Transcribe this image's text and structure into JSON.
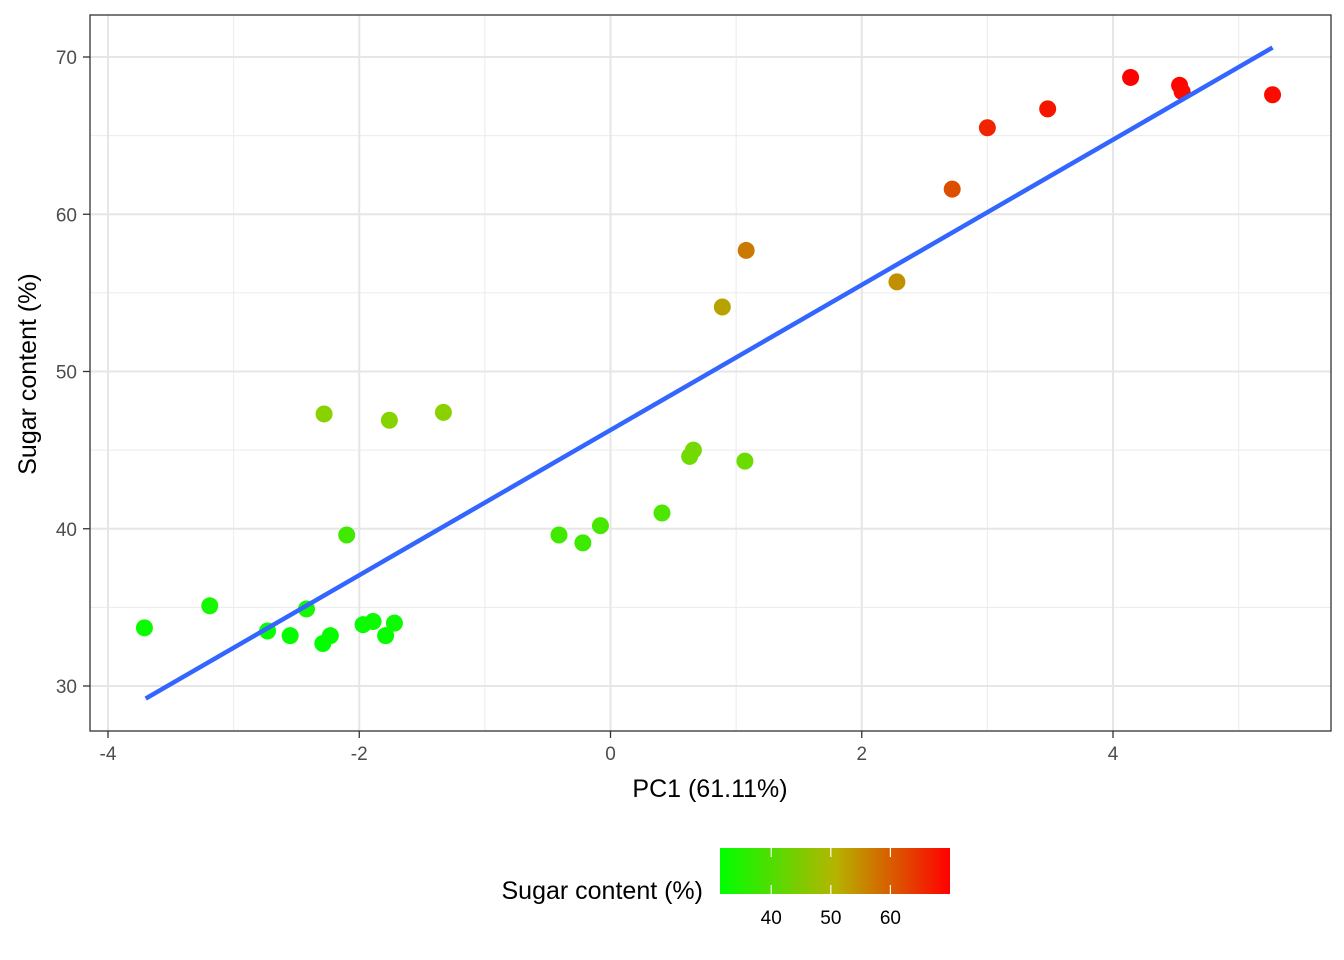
{
  "chart_data": {
    "type": "scatter",
    "xlabel": "PC1 (61.11%)",
    "ylabel": "Sugar content (%)",
    "xlim": [
      -4.2,
      5.4
    ],
    "ylim": [
      27356,
      71060
    ],
    "ylim_note": "",
    "x_ticks": [
      -4,
      -2,
      0,
      2,
      4
    ],
    "x_tick_labels": [
      "-4",
      "-2",
      "0",
      "2",
      "4"
    ],
    "y_ticks": [
      30,
      40,
      50,
      60,
      70
    ],
    "y_tick_labels": [
      "30",
      "40",
      "50",
      "60",
      "70"
    ],
    "grid": true,
    "points": [
      {
        "x": -3.71,
        "y": 33.7
      },
      {
        "x": -3.19,
        "y": 35.1
      },
      {
        "x": -2.73,
        "y": 33.5
      },
      {
        "x": -2.55,
        "y": 33.2
      },
      {
        "x": -2.42,
        "y": 34.9
      },
      {
        "x": -2.29,
        "y": 32.7
      },
      {
        "x": -2.23,
        "y": 33.2
      },
      {
        "x": -2.28,
        "y": 47.3
      },
      {
        "x": -2.1,
        "y": 39.6
      },
      {
        "x": -1.97,
        "y": 33.9
      },
      {
        "x": -1.89,
        "y": 34.1
      },
      {
        "x": -1.79,
        "y": 33.2
      },
      {
        "x": -1.72,
        "y": 34.0
      },
      {
        "x": -1.76,
        "y": 46.9
      },
      {
        "x": -1.33,
        "y": 47.4
      },
      {
        "x": -0.41,
        "y": 39.6
      },
      {
        "x": -0.22,
        "y": 39.1
      },
      {
        "x": -0.08,
        "y": 40.2
      },
      {
        "x": 0.41,
        "y": 41.0
      },
      {
        "x": 0.63,
        "y": 44.6
      },
      {
        "x": 0.66,
        "y": 45.0
      },
      {
        "x": 1.07,
        "y": 44.3
      },
      {
        "x": 0.89,
        "y": 54.1
      },
      {
        "x": 1.08,
        "y": 57.7
      },
      {
        "x": 2.28,
        "y": 55.7
      },
      {
        "x": 2.72,
        "y": 61.6
      },
      {
        "x": 3.0,
        "y": 65.5
      },
      {
        "x": 3.48,
        "y": 66.7
      },
      {
        "x": 4.14,
        "y": 68.7
      },
      {
        "x": 4.53,
        "y": 68.2
      },
      {
        "x": 4.55,
        "y": 67.8
      },
      {
        "x": 5.27,
        "y": 67.6
      }
    ],
    "trend_line": {
      "x1": -3.7,
      "y1": 29.2,
      "x2": 5.27,
      "y2": 70.6,
      "color": "#3366ff"
    },
    "color_scale": {
      "low": "#00ff00",
      "mid": "#a8c800",
      "high": "#ff0000",
      "min": 32.7,
      "max": 68.7
    },
    "legend": {
      "title": "Sugar content (%)",
      "position": "bottom",
      "ticks": [
        40,
        50,
        60
      ],
      "tick_labels": [
        "40",
        "50",
        "60"
      ]
    }
  }
}
